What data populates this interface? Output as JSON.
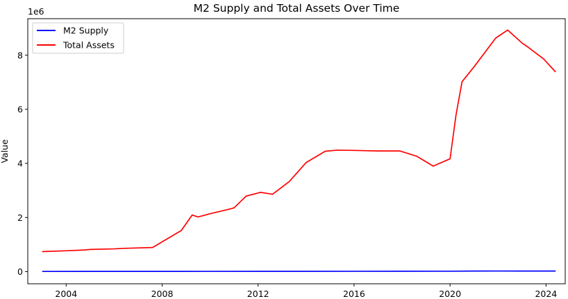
{
  "chart_data": {
    "type": "line",
    "title": "M2 Supply and Total Assets Over Time",
    "xlabel": "",
    "ylabel": "Value",
    "y_offset_text": "1e6",
    "xlim": [
      2002.4,
      2024.8
    ],
    "ylim": [
      -0.45,
      9.35
    ],
    "x_ticks": [
      2004,
      2008,
      2012,
      2016,
      2020,
      2024
    ],
    "x_tick_labels": [
      "2004",
      "2008",
      "2012",
      "2016",
      "2020",
      "2024"
    ],
    "y_ticks": [
      0,
      2,
      4,
      6,
      8
    ],
    "y_tick_labels": [
      "0",
      "2",
      "4",
      "6",
      "8"
    ],
    "grid": false,
    "legend_position": "top-left",
    "series": [
      {
        "name": "M2 Supply",
        "color": "#0000ff",
        "x": [
          2003.0,
          2006.0,
          2010.0,
          2014.0,
          2018.0,
          2020.0,
          2021.0,
          2022.0,
          2023.0,
          2024.4
        ],
        "y": [
          0.006,
          0.0068,
          0.0087,
          0.011,
          0.014,
          0.0155,
          0.0195,
          0.0215,
          0.0208,
          0.0209
        ]
      },
      {
        "name": "Total Assets",
        "color": "#ff0000",
        "x": [
          2003.0,
          2004.0,
          2004.8,
          2005.0,
          2006.0,
          2006.4,
          2007.6,
          2008.8,
          2009.25,
          2009.5,
          2010.0,
          2010.9,
          2011.0,
          2011.5,
          2012.1,
          2012.6,
          2013.3,
          2014.0,
          2014.8,
          2015.3,
          2016.0,
          2017.0,
          2017.9,
          2018.6,
          2019.3,
          2020.0,
          2020.25,
          2020.5,
          2021.0,
          2021.9,
          2022.4,
          2023.0,
          2023.2,
          2023.9,
          2024.4
        ],
        "y": [
          0.74,
          0.77,
          0.8,
          0.82,
          0.84,
          0.86,
          0.89,
          1.52,
          2.09,
          2.02,
          2.14,
          2.33,
          2.36,
          2.79,
          2.93,
          2.86,
          3.33,
          4.03,
          4.45,
          4.49,
          4.48,
          4.46,
          4.46,
          4.27,
          3.9,
          4.17,
          5.8,
          7.02,
          7.57,
          8.63,
          8.93,
          8.45,
          8.33,
          7.86,
          7.38
        ]
      }
    ]
  }
}
